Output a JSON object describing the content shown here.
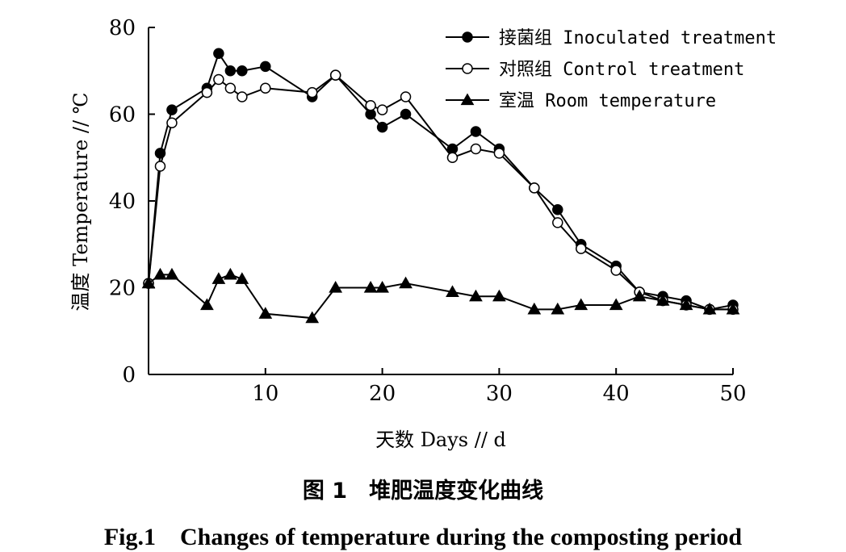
{
  "chart_data": {
    "type": "line",
    "xlabel": "天数 Days // d",
    "ylabel": "温度 Temperature // ℃",
    "xlim": [
      0,
      50
    ],
    "ylim": [
      0,
      80
    ],
    "x_ticks": [
      10,
      20,
      30,
      40,
      50
    ],
    "y_ticks": [
      0,
      20,
      40,
      60,
      80
    ],
    "grid": false,
    "legend_position": "top-right",
    "series": [
      {
        "name": "接菌组 Inoculated treatment",
        "marker": "filled-circle",
        "color": "#000000",
        "x": [
          0,
          1,
          2,
          5,
          6,
          7,
          8,
          10,
          14,
          16,
          19,
          20,
          22,
          26,
          28,
          30,
          33,
          35,
          37,
          40,
          42,
          44,
          46,
          48,
          50
        ],
        "y": [
          21,
          51,
          61,
          66,
          74,
          70,
          70,
          71,
          64,
          69,
          60,
          57,
          60,
          52,
          56,
          52,
          43,
          38,
          30,
          25,
          19,
          18,
          17,
          15,
          16
        ]
      },
      {
        "name": "对照组 Control treatment",
        "marker": "open-circle",
        "color": "#000000",
        "x": [
          0,
          1,
          2,
          5,
          6,
          7,
          8,
          10,
          14,
          16,
          19,
          20,
          22,
          26,
          28,
          30,
          33,
          35,
          37,
          40,
          42,
          44,
          46,
          48,
          50
        ],
        "y": [
          21,
          48,
          58,
          65,
          68,
          66,
          64,
          66,
          65,
          69,
          62,
          61,
          64,
          50,
          52,
          51,
          43,
          35,
          29,
          24,
          19,
          17,
          16,
          15,
          15
        ]
      },
      {
        "name": "室温 Room temperature",
        "marker": "filled-triangle",
        "color": "#000000",
        "x": [
          0,
          1,
          2,
          5,
          6,
          7,
          8,
          10,
          14,
          16,
          19,
          20,
          22,
          26,
          28,
          30,
          33,
          35,
          37,
          40,
          42,
          44,
          46,
          48,
          50
        ],
        "y": [
          21,
          23,
          23,
          16,
          22,
          23,
          22,
          14,
          13,
          20,
          20,
          20,
          21,
          19,
          18,
          18,
          15,
          15,
          16,
          16,
          18,
          17,
          16,
          15,
          15
        ]
      }
    ]
  },
  "caption": {
    "cn": "图 1　堆肥温度变化曲线",
    "en": "Fig.1　Changes of temperature during the composting period"
  }
}
